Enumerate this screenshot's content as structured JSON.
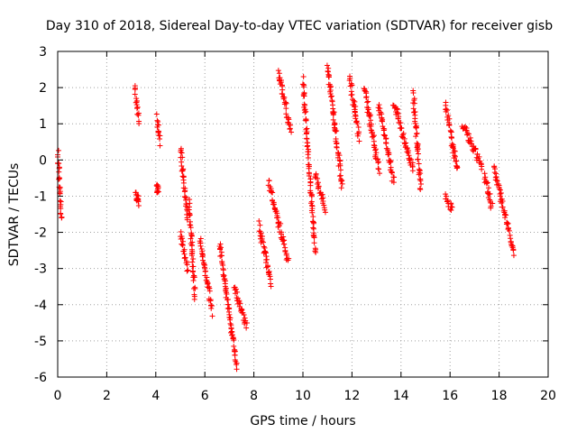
{
  "chart_data": {
    "type": "scatter",
    "title": "Day 310 of 2018, Sidereal Day-to-day VTEC variation (SDTVAR) for receiver gisb",
    "xlabel": "GPS time / hours",
    "ylabel": "SDTVAR / TECUs",
    "xlim": [
      0,
      20
    ],
    "ylim": [
      -6,
      3
    ],
    "xticks": [
      "0",
      "2",
      "4",
      "6",
      "8",
      "10",
      "12",
      "14",
      "16",
      "18",
      "20"
    ],
    "yticks": [
      "3",
      "2",
      "1",
      "0",
      "-1",
      "-2",
      "-3",
      "-4",
      "-5",
      "-6"
    ],
    "grid": true,
    "marker": "plus",
    "series_color": "#ff0000",
    "clusters": [
      {
        "x": [
          0.0,
          0.15
        ],
        "y": [
          0.2,
          -1.6
        ]
      },
      {
        "x": [
          3.15,
          3.3
        ],
        "y": [
          2.0,
          1.1
        ]
      },
      {
        "x": [
          3.2,
          3.3
        ],
        "y": [
          -1.0,
          -1.15
        ]
      },
      {
        "x": [
          4.05,
          4.15
        ],
        "y": [
          1.2,
          0.5
        ]
      },
      {
        "x": [
          4.05,
          4.1
        ],
        "y": [
          -0.8,
          -0.8
        ]
      },
      {
        "x": [
          5.0,
          5.3
        ],
        "y": [
          0.3,
          -1.6
        ]
      },
      {
        "x": [
          5.0,
          5.3
        ],
        "y": [
          -2.0,
          -3.0
        ]
      },
      {
        "x": [
          5.35,
          5.6
        ],
        "y": [
          -1.2,
          -3.8
        ]
      },
      {
        "x": [
          5.8,
          6.3
        ],
        "y": [
          -2.2,
          -4.2
        ]
      },
      {
        "x": [
          6.6,
          7.3
        ],
        "y": [
          -2.3,
          -5.7
        ]
      },
      {
        "x": [
          7.2,
          7.7
        ],
        "y": [
          -3.5,
          -4.6
        ]
      },
      {
        "x": [
          8.2,
          8.7
        ],
        "y": [
          -1.8,
          -3.4
        ]
      },
      {
        "x": [
          8.6,
          9.4
        ],
        "y": [
          -0.6,
          -2.8
        ]
      },
      {
        "x": [
          9.0,
          9.5
        ],
        "y": [
          2.4,
          0.8
        ]
      },
      {
        "x": [
          10.0,
          10.5
        ],
        "y": [
          2.2,
          -2.5
        ]
      },
      {
        "x": [
          10.5,
          10.9
        ],
        "y": [
          -0.4,
          -1.4
        ]
      },
      {
        "x": [
          11.0,
          11.6
        ],
        "y": [
          2.6,
          -0.7
        ]
      },
      {
        "x": [
          11.9,
          12.3
        ],
        "y": [
          2.3,
          0.6
        ]
      },
      {
        "x": [
          12.5,
          13.1
        ],
        "y": [
          2.0,
          -0.3
        ]
      },
      {
        "x": [
          13.1,
          13.7
        ],
        "y": [
          1.5,
          -0.6
        ]
      },
      {
        "x": [
          13.7,
          14.5
        ],
        "y": [
          1.6,
          -0.3
        ]
      },
      {
        "x": [
          14.5,
          14.8
        ],
        "y": [
          1.8,
          -0.8
        ]
      },
      {
        "x": [
          15.8,
          16.3
        ],
        "y": [
          1.6,
          -0.3
        ]
      },
      {
        "x": [
          15.8,
          16.1
        ],
        "y": [
          -1.0,
          -1.4
        ]
      },
      {
        "x": [
          16.5,
          17.3
        ],
        "y": [
          1.0,
          -0.2
        ]
      },
      {
        "x": [
          17.4,
          17.7
        ],
        "y": [
          -0.4,
          -1.3
        ]
      },
      {
        "x": [
          17.8,
          18.6
        ],
        "y": [
          -0.2,
          -2.6
        ]
      }
    ]
  }
}
